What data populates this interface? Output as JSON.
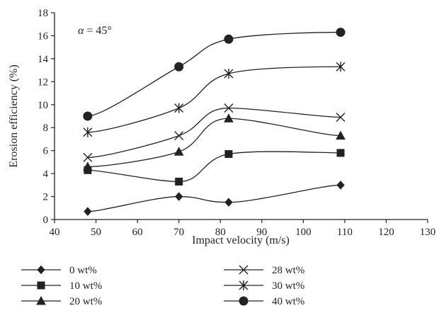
{
  "chart_data": {
    "type": "line",
    "xlabel": "Impact velocity (m/s)",
    "ylabel": "Erosion efficiency (%)",
    "xlim": [
      40,
      130
    ],
    "ylim": [
      0,
      18
    ],
    "x_ticks": [
      40,
      50,
      60,
      70,
      80,
      90,
      100,
      110,
      120,
      130
    ],
    "y_ticks": [
      0,
      2,
      4,
      6,
      8,
      10,
      12,
      14,
      16,
      18
    ],
    "x": [
      48,
      70,
      82,
      109
    ],
    "annotation": {
      "symbol": "α",
      "text": " = 45°"
    },
    "legend_position": "bottom",
    "series": [
      {
        "name": "0 wt%",
        "marker": "diamond",
        "values": [
          0.7,
          2.0,
          1.5,
          3.0
        ]
      },
      {
        "name": "10 wt%",
        "marker": "square",
        "values": [
          4.3,
          3.3,
          5.7,
          5.8
        ]
      },
      {
        "name": "20 wt%",
        "marker": "triangle",
        "values": [
          4.6,
          5.9,
          8.8,
          7.3
        ]
      },
      {
        "name": "28 wt%",
        "marker": "x",
        "values": [
          5.4,
          7.3,
          9.7,
          8.9
        ]
      },
      {
        "name": "30 wt%",
        "marker": "asterisk",
        "values": [
          7.6,
          9.7,
          12.7,
          13.3
        ]
      },
      {
        "name": "40 wt%",
        "marker": "circle",
        "values": [
          9.0,
          13.3,
          15.7,
          16.3
        ]
      }
    ]
  }
}
